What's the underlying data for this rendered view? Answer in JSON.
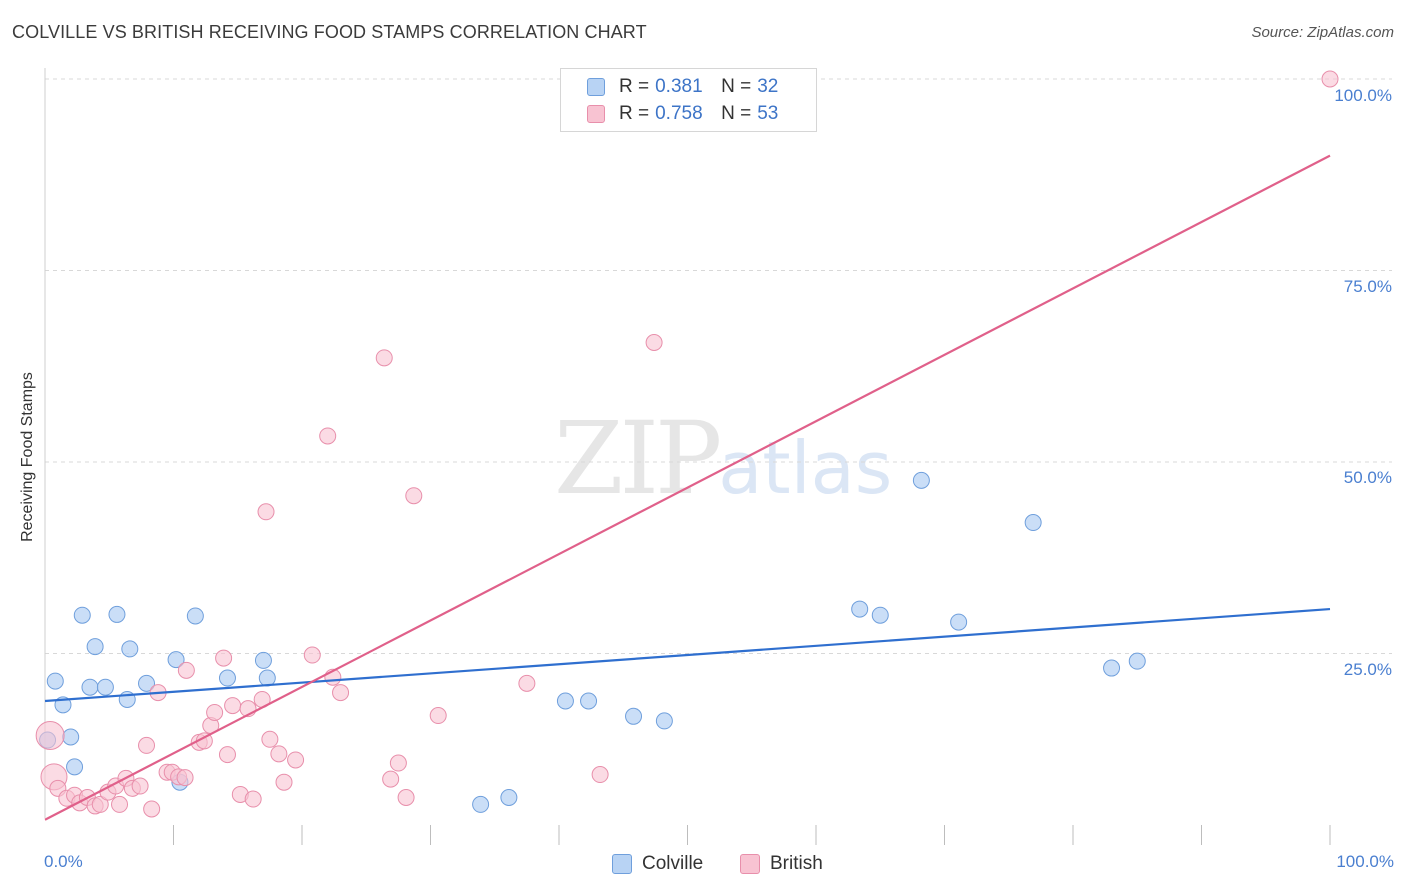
{
  "title": "COLVILLE VS BRITISH RECEIVING FOOD STAMPS CORRELATION CHART",
  "source": "Source: ZipAtlas.com",
  "watermark": {
    "zip": "ZIP",
    "atlas": "atlas"
  },
  "legend": {
    "colville": {
      "r_label": "R =",
      "r_value": "0.381",
      "n_label": "N =",
      "n_value": "32"
    },
    "british": {
      "r_label": "R =",
      "r_value": "0.758",
      "n_label": "N =",
      "n_value": "53"
    }
  },
  "bottom_legend": {
    "colville": "Colville",
    "british": "British"
  },
  "colors": {
    "colville_fill": "#b8d3f4",
    "colville_stroke": "#6f9fdc",
    "colville_line": "#2f6fcf",
    "british_fill": "#f8c3d2",
    "british_stroke": "#e88fab",
    "british_line": "#e0608a",
    "tick_label": "#4a7fd0",
    "grid": "#d8d8d8"
  },
  "chart_data": {
    "type": "scatter",
    "title": "COLVILLE VS BRITISH RECEIVING FOOD STAMPS CORRELATION CHART",
    "xlabel": "",
    "ylabel": "Receiving Food Stamps",
    "xlim": [
      0,
      100
    ],
    "ylim": [
      0,
      100
    ],
    "x_tick_labels": {
      "min": "0.0%",
      "max": "100.0%"
    },
    "y_tick_labels": [
      "100.0%",
      "75.0%",
      "50.0%",
      "25.0%"
    ],
    "y_tick_values": [
      100,
      75,
      50,
      25
    ],
    "grid": "horizontal dashed",
    "series": [
      {
        "name": "Colville",
        "r": 0.381,
        "n": 32,
        "trend": {
          "x0": 0,
          "y0": 18.8,
          "x1": 100,
          "y1": 30.8
        },
        "points": [
          [
            0.2,
            13.7
          ],
          [
            0.8,
            21.4
          ],
          [
            1.4,
            18.3
          ],
          [
            2.0,
            14.1
          ],
          [
            2.3,
            10.2
          ],
          [
            2.9,
            30.0
          ],
          [
            3.5,
            20.6
          ],
          [
            3.9,
            25.9
          ],
          [
            4.7,
            20.6
          ],
          [
            5.6,
            30.1
          ],
          [
            6.4,
            19.0
          ],
          [
            6.6,
            25.6
          ],
          [
            7.9,
            21.1
          ],
          [
            10.2,
            24.2
          ],
          [
            10.5,
            8.2
          ],
          [
            11.7,
            29.9
          ],
          [
            14.2,
            21.8
          ],
          [
            17.0,
            24.1
          ],
          [
            17.3,
            21.8
          ],
          [
            33.9,
            5.3
          ],
          [
            36.1,
            6.2
          ],
          [
            40.5,
            18.8
          ],
          [
            42.3,
            18.8
          ],
          [
            45.8,
            16.8
          ],
          [
            48.2,
            16.2
          ],
          [
            63.4,
            30.8
          ],
          [
            65.0,
            30.0
          ],
          [
            68.2,
            47.6
          ],
          [
            71.1,
            29.1
          ],
          [
            76.9,
            42.1
          ],
          [
            83.0,
            23.1
          ],
          [
            85.0,
            24.0
          ]
        ]
      },
      {
        "name": "British",
        "r": 0.758,
        "n": 53,
        "trend": {
          "x0": 0,
          "y0": 3.3,
          "x1": 100,
          "y1": 90.0
        },
        "points": [
          [
            0.4,
            14.3
          ],
          [
            0.7,
            8.9
          ],
          [
            1.0,
            7.4
          ],
          [
            1.7,
            6.1
          ],
          [
            2.3,
            6.5
          ],
          [
            2.7,
            5.5
          ],
          [
            3.3,
            6.2
          ],
          [
            3.9,
            5.1
          ],
          [
            4.3,
            5.3
          ],
          [
            4.9,
            6.9
          ],
          [
            5.5,
            7.7
          ],
          [
            5.8,
            5.3
          ],
          [
            6.3,
            8.7
          ],
          [
            6.8,
            7.4
          ],
          [
            7.4,
            7.7
          ],
          [
            7.9,
            13.0
          ],
          [
            8.3,
            4.7
          ],
          [
            8.8,
            19.9
          ],
          [
            9.5,
            9.5
          ],
          [
            9.9,
            9.5
          ],
          [
            10.4,
            8.9
          ],
          [
            10.9,
            8.8
          ],
          [
            11.0,
            22.8
          ],
          [
            12.0,
            13.4
          ],
          [
            12.4,
            13.6
          ],
          [
            12.9,
            15.6
          ],
          [
            13.2,
            17.3
          ],
          [
            13.9,
            24.4
          ],
          [
            14.2,
            11.8
          ],
          [
            14.6,
            18.2
          ],
          [
            15.2,
            6.6
          ],
          [
            15.8,
            17.8
          ],
          [
            16.2,
            6.0
          ],
          [
            16.9,
            19.0
          ],
          [
            17.2,
            43.5
          ],
          [
            17.5,
            13.8
          ],
          [
            18.2,
            11.9
          ],
          [
            18.6,
            8.2
          ],
          [
            19.5,
            11.1
          ],
          [
            20.8,
            24.8
          ],
          [
            22.0,
            53.4
          ],
          [
            22.4,
            21.9
          ],
          [
            23.0,
            19.9
          ],
          [
            26.4,
            63.6
          ],
          [
            26.9,
            8.6
          ],
          [
            27.5,
            10.7
          ],
          [
            28.1,
            6.2
          ],
          [
            28.7,
            45.6
          ],
          [
            30.6,
            16.9
          ],
          [
            37.5,
            21.1
          ],
          [
            43.2,
            9.2
          ],
          [
            47.4,
            65.6
          ],
          [
            100.0,
            100.0
          ]
        ]
      }
    ]
  }
}
